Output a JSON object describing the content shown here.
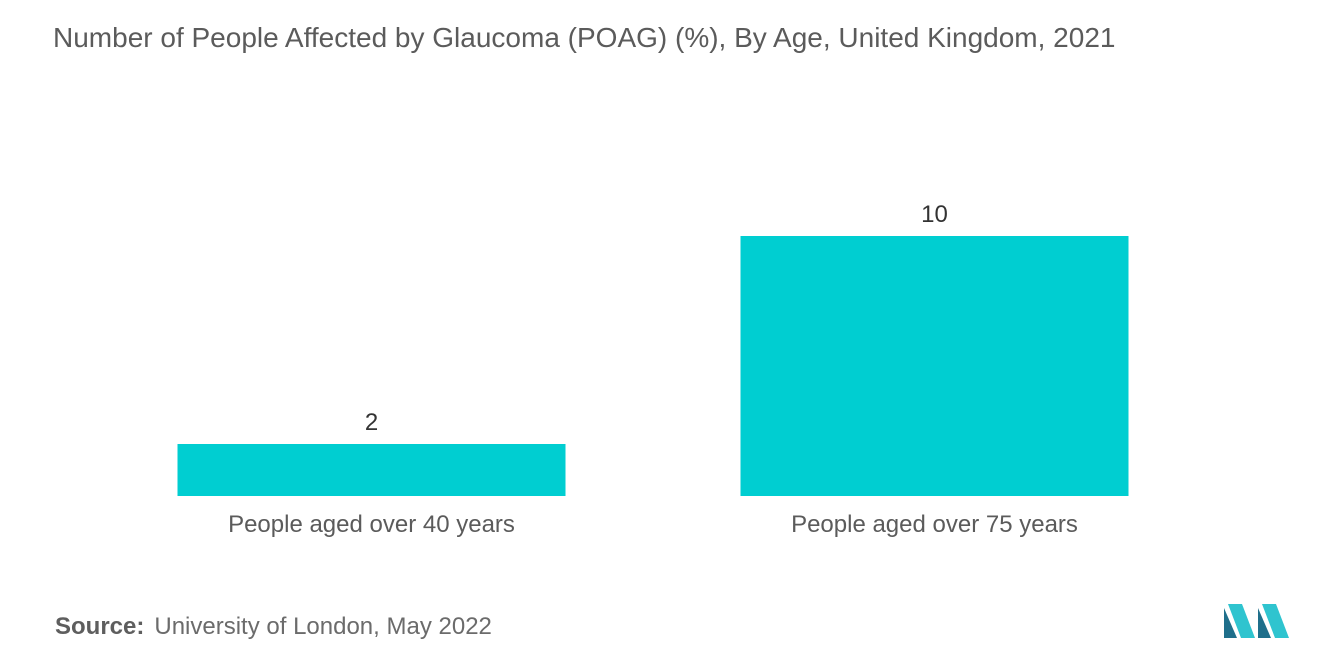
{
  "colors": {
    "bar": "#00CED1",
    "text": "#5b5b5b",
    "logo_dark": "#1f6f8b",
    "logo_light": "#2fc4cf"
  },
  "chart_data": {
    "type": "bar",
    "title": "Number of People Affected by Glaucoma (POAG) (%), By Age, United Kingdom, 2021",
    "categories": [
      "People aged over 40 years",
      "People aged over 75 years"
    ],
    "values": [
      2,
      10
    ],
    "value_labels": [
      "2",
      "10"
    ],
    "xlabel": "",
    "ylabel": "",
    "ylim": [
      0,
      10
    ],
    "grid": false,
    "legend": "none"
  },
  "source": {
    "label": "Source:",
    "text": "University of London, May 2022"
  },
  "logo": {
    "icon": "mordor-intelligence-logo"
  }
}
